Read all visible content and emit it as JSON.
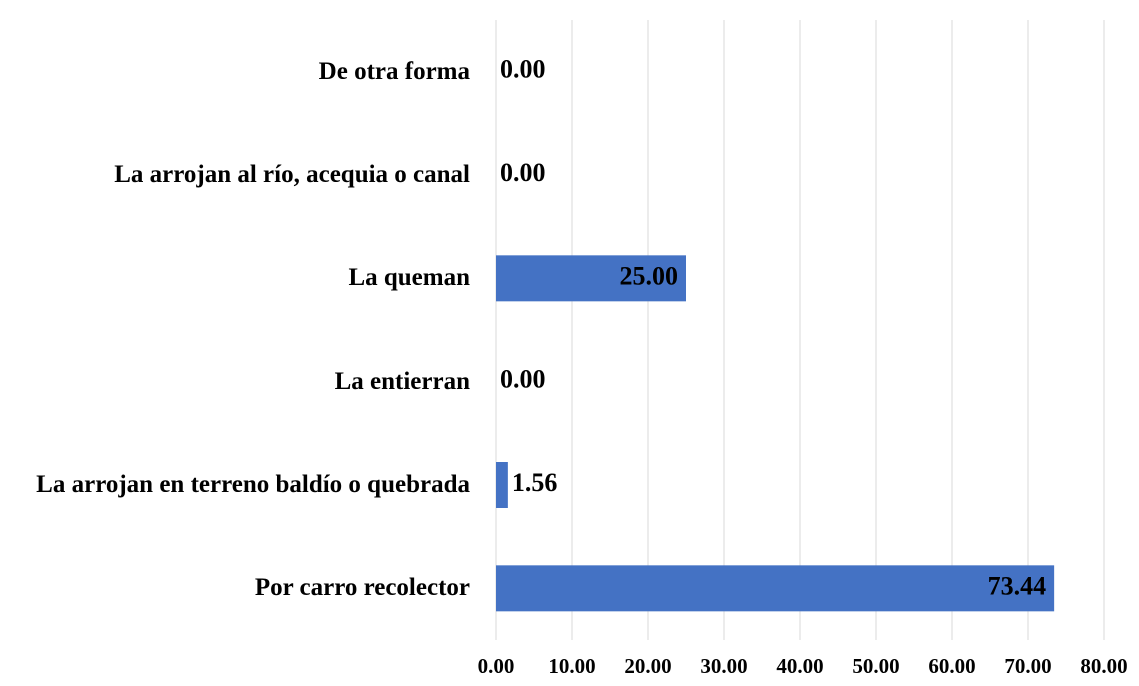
{
  "chart_data": {
    "type": "bar",
    "orientation": "horizontal",
    "categories": [
      "Por carro recolector",
      "La arrojan en terreno baldío o quebrada",
      "La entierran",
      "La queman",
      "La arrojan al río, acequia o canal",
      "De otra forma"
    ],
    "values": [
      73.44,
      1.56,
      0,
      25,
      0,
      0
    ],
    "value_labels": [
      "73.44",
      "1.56",
      "0.00",
      "25.00",
      "0.00",
      "0.00"
    ],
    "color": "#4472c4",
    "xlim": [
      0,
      80
    ],
    "xticks": [
      {
        "value": 0,
        "label": "0.00"
      },
      {
        "value": 10,
        "label": "10.00"
      },
      {
        "value": 20,
        "label": "20.00"
      },
      {
        "value": 30,
        "label": "30.00"
      },
      {
        "value": 40,
        "label": "40.00"
      },
      {
        "value": 50,
        "label": "50.00"
      },
      {
        "value": 60,
        "label": "60.00"
      },
      {
        "value": 70,
        "label": "70.00"
      },
      {
        "value": 80,
        "label": "80.00"
      }
    ],
    "grid": true
  }
}
